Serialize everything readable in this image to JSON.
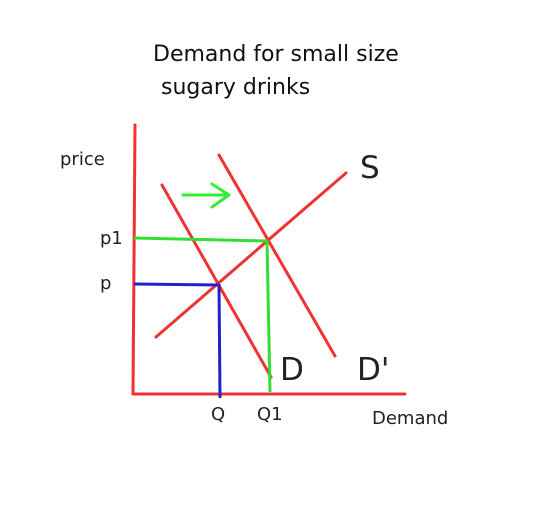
{
  "chart_data": {
    "type": "line",
    "title_line1": "Demand for small size",
    "title_line2": "sugary drinks",
    "xlabel": "Demand",
    "ylabel": "price",
    "x_ticks": [
      "Q",
      "Q1"
    ],
    "y_ticks": [
      "p1",
      "p"
    ],
    "series": [
      {
        "name": "S",
        "color": "#ee3333"
      },
      {
        "name": "D",
        "color": "#ee3333"
      },
      {
        "name": "D'",
        "color": "#ee3333"
      }
    ],
    "equilibria": [
      {
        "price": "p",
        "quantity": "Q",
        "color": "#2222cc"
      },
      {
        "price": "p1",
        "quantity": "Q1",
        "color": "#33dd33"
      }
    ],
    "shift_arrow": {
      "direction": "right",
      "color": "#33ee33"
    },
    "axis_color": "#ee3333"
  }
}
